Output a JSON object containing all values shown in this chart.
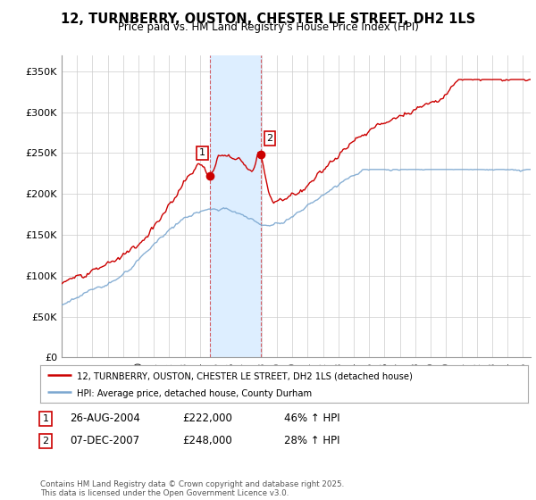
{
  "title": "12, TURNBERRY, OUSTON, CHESTER LE STREET, DH2 1LS",
  "subtitle": "Price paid vs. HM Land Registry's House Price Index (HPI)",
  "ylabel_ticks": [
    "£0",
    "£50K",
    "£100K",
    "£150K",
    "£200K",
    "£250K",
    "£300K",
    "£350K"
  ],
  "ylim": [
    0,
    370000
  ],
  "xlim_start": 1995.0,
  "xlim_end": 2025.5,
  "red_line_color": "#cc0000",
  "blue_line_color": "#7ba7d0",
  "shaded_region_color": "#ddeeff",
  "shaded_x1": 2004.65,
  "shaded_x2": 2007.93,
  "marker1_x": 2004.65,
  "marker1_y": 222000,
  "marker2_x": 2007.93,
  "marker2_y": 248000,
  "marker1_label": "1",
  "marker2_label": "2",
  "legend_red_label": "12, TURNBERRY, OUSTON, CHESTER LE STREET, DH2 1LS (detached house)",
  "legend_blue_label": "HPI: Average price, detached house, County Durham",
  "table_row1": [
    "1",
    "26-AUG-2004",
    "£222,000",
    "46% ↑ HPI"
  ],
  "table_row2": [
    "2",
    "07-DEC-2007",
    "£248,000",
    "28% ↑ HPI"
  ],
  "footnote": "Contains HM Land Registry data © Crown copyright and database right 2025.\nThis data is licensed under the Open Government Licence v3.0.",
  "bg_color": "#ffffff",
  "grid_color": "#cccccc"
}
